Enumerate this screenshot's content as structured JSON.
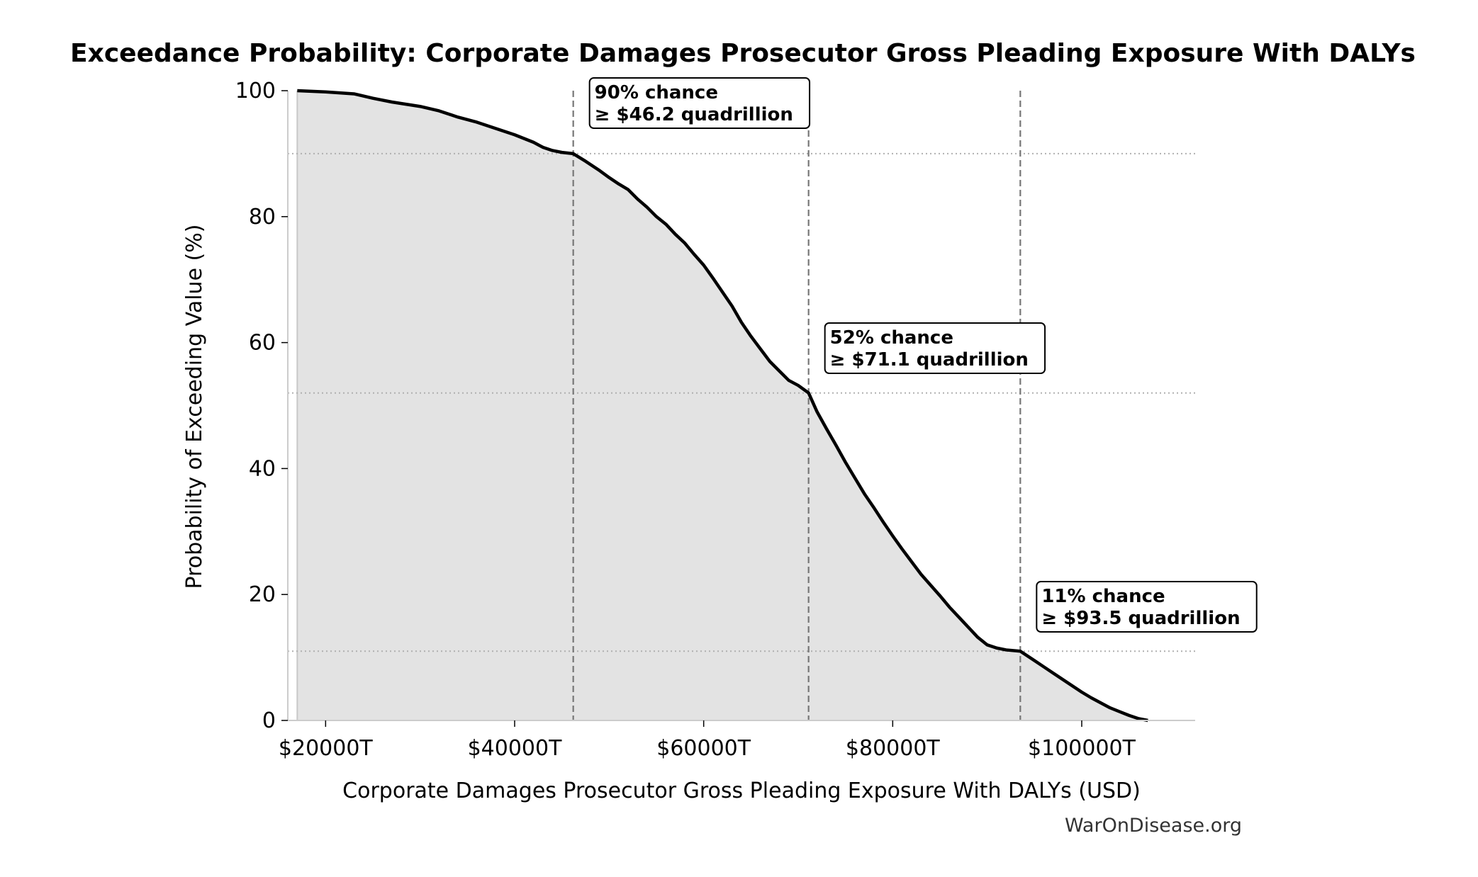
{
  "chart_data": {
    "type": "area",
    "title": "Exceedance Probability: Corporate Damages Prosecutor Gross Pleading Exposure With DALYs",
    "xlabel": "Corporate Damages Prosecutor Gross Pleading Exposure With DALYs (USD)",
    "ylabel": "Probability of Exceeding Value (%)",
    "xlim": [
      16000,
      112000
    ],
    "ylim": [
      0,
      100
    ],
    "x_unit": "trillion USD",
    "x_ticks": [
      {
        "value": 20000,
        "label": "$20000T"
      },
      {
        "value": 40000,
        "label": "$40000T"
      },
      {
        "value": 60000,
        "label": "$60000T"
      },
      {
        "value": 80000,
        "label": "$80000T"
      },
      {
        "value": 100000,
        "label": "$100000T"
      }
    ],
    "y_ticks": [
      {
        "value": 0,
        "label": "0"
      },
      {
        "value": 20,
        "label": "20"
      },
      {
        "value": 40,
        "label": "40"
      },
      {
        "value": 60,
        "label": "60"
      },
      {
        "value": 80,
        "label": "80"
      },
      {
        "value": 100,
        "label": "100"
      }
    ],
    "series": [
      {
        "x": [
          17000,
          20000,
          23000,
          25000,
          27000,
          30000,
          32000,
          34000,
          36000,
          38000,
          40000,
          42000,
          43000,
          44000,
          45000,
          46200,
          47500,
          49000,
          50000,
          51000,
          52000,
          53000,
          54000,
          55000,
          56000,
          57000,
          58000,
          59000,
          60000,
          61000,
          62000,
          63000,
          64000,
          65000,
          66000,
          67000,
          68000,
          69000,
          70000,
          71100,
          72000,
          73000,
          74000,
          75000,
          76000,
          77000,
          78000,
          79000,
          80000,
          81000,
          82000,
          83000,
          84000,
          85000,
          86000,
          87000,
          88000,
          89000,
          90000,
          91000,
          92000,
          93500,
          95000,
          96000,
          97000,
          98000,
          99000,
          100000,
          101000,
          102000,
          103000,
          104000,
          105000,
          106000,
          107000
        ],
        "y": [
          100,
          99.8,
          99.5,
          98.8,
          98.2,
          97.5,
          96.8,
          95.8,
          95.0,
          94.0,
          93.0,
          91.8,
          91.0,
          90.5,
          90.2,
          90.0,
          88.8,
          87.3,
          86.2,
          85.2,
          84.3,
          82.8,
          81.5,
          80.0,
          78.8,
          77.2,
          75.8,
          74.0,
          72.3,
          70.2,
          68.0,
          65.8,
          63.2,
          61.0,
          59.0,
          57.0,
          55.5,
          54.0,
          53.2,
          52.0,
          49.0,
          46.3,
          43.7,
          41.0,
          38.5,
          36.0,
          33.8,
          31.5,
          29.3,
          27.2,
          25.2,
          23.2,
          21.5,
          19.8,
          18.0,
          16.4,
          14.8,
          13.2,
          12.0,
          11.5,
          11.2,
          11.0,
          9.5,
          8.5,
          7.5,
          6.5,
          5.5,
          4.5,
          3.6,
          2.8,
          2.0,
          1.4,
          0.8,
          0.3,
          0.0
        ]
      }
    ],
    "markers": [
      {
        "x": 46200,
        "y": 90,
        "label_line1": "90% chance",
        "label_line2": "≥ $46.2 quadrillion",
        "label_pos": "top"
      },
      {
        "x": 71100,
        "y": 52,
        "label_line1": "52% chance",
        "label_line2": "≥ $71.1 quadrillion",
        "label_pos": "middle"
      },
      {
        "x": 93500,
        "y": 11,
        "label_line1": "11% chance",
        "label_line2": "≥ $93.5 quadrillion",
        "label_pos": "bottom"
      }
    ],
    "grid": false,
    "legend": "none"
  },
  "credit": "WarOnDisease.org",
  "colors": {
    "line": "#000000",
    "fill": "#e3e3e3",
    "vline": "#777777",
    "hline": "#b0b0b0",
    "axis": "#cccccc"
  }
}
